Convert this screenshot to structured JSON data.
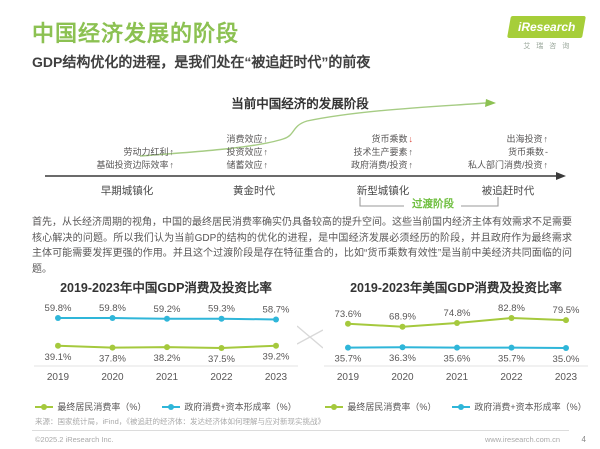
{
  "header": {
    "title": "中国经济发展的阶段",
    "subtitle": "GDP结构优化的进程，是我们处在“被追赶时代”的前夜",
    "logo": {
      "brand": "iResearch",
      "brand_cn": "艾瑞咨询"
    }
  },
  "colors": {
    "brand_green": "#8cc152",
    "logo_green": "#a6ce39",
    "line_green": "#a5c93d",
    "line_blue": "#2fb6d9",
    "down_red": "#d9453a",
    "transition_green": "#6fbf3f"
  },
  "diagram": {
    "title": "当前中国经济的发展阶段",
    "transition_label": "过渡阶段",
    "stages": [
      {
        "name": "早期城镇化",
        "factors": [
          {
            "text": "劳动力红利",
            "trend": "up"
          },
          {
            "text": "基础投资边际效率",
            "trend": "up"
          }
        ]
      },
      {
        "name": "黄金时代",
        "factors": [
          {
            "text": "消费效应",
            "trend": "up"
          },
          {
            "text": "投资效应",
            "trend": "up"
          },
          {
            "text": "储蓄效应",
            "trend": "up"
          }
        ]
      },
      {
        "name": "新型城镇化",
        "factors": [
          {
            "text": "货币乘数",
            "trend": "down"
          },
          {
            "text": "技术生产要素",
            "trend": "up"
          },
          {
            "text": "政府消费/投资",
            "trend": "up"
          }
        ]
      },
      {
        "name": "被追赶时代",
        "factors": [
          {
            "text": "出海投资",
            "trend": "up"
          },
          {
            "text": "货币乘数",
            "trend": "flat"
          },
          {
            "text": "私人部门消费/投资",
            "trend": "up"
          }
        ]
      }
    ]
  },
  "paragraph": "首先，从长经济周期的视角，中国的最终居民消费率确实仍具备较高的提升空间。这些当前国内经济主体有效需求不足需要核心解决的问题。所以我们认为当前GDP的结构的优化的进程，是中国经济发展必须经历的阶段，并且政府作为最终需求主体可能需要发挥更强的作用。并且这个过渡阶段是存在特征重合的，比如“货币乘数有效性”是当前中美经济共同面临的问题。",
  "chart_data": [
    {
      "type": "line",
      "title": "2019-2023年中国GDP消费及投资比率",
      "categories": [
        "2019",
        "2020",
        "2021",
        "2022",
        "2023"
      ],
      "series": [
        {
          "name": "最终居民消费率（%）",
          "color": "#a5c93d",
          "values": [
            39.1,
            37.8,
            38.2,
            37.5,
            39.2
          ]
        },
        {
          "name": "政府消费+资本形成率（%）",
          "color": "#2fb6d9",
          "values": [
            59.8,
            59.8,
            59.2,
            59.3,
            58.7
          ]
        }
      ],
      "value_suffix": "%",
      "grid": false,
      "legend_position": "bottom"
    },
    {
      "type": "line",
      "title": "2019-2023年美国GDP消费及投资比率",
      "categories": [
        "2019",
        "2020",
        "2021",
        "2022",
        "2023"
      ],
      "series": [
        {
          "name": "最终居民消费率（%）",
          "color": "#a5c93d",
          "values": [
            73.6,
            68.9,
            74.8,
            82.8,
            79.5
          ]
        },
        {
          "name": "政府消费+资本形成率（%）",
          "color": "#2fb6d9",
          "values": [
            35.7,
            36.3,
            35.6,
            35.7,
            35.0
          ]
        }
      ],
      "value_suffix": "%",
      "grid": false,
      "legend_position": "bottom"
    }
  ],
  "footer": {
    "source": "来源：国家统计局，iFind，《被追赶的经济体：发达经济体如何理解与应对新现实挑战》",
    "copyright": "©2025.2 iResearch Inc.",
    "website": "www.iresearch.com.cn",
    "page": "4"
  }
}
